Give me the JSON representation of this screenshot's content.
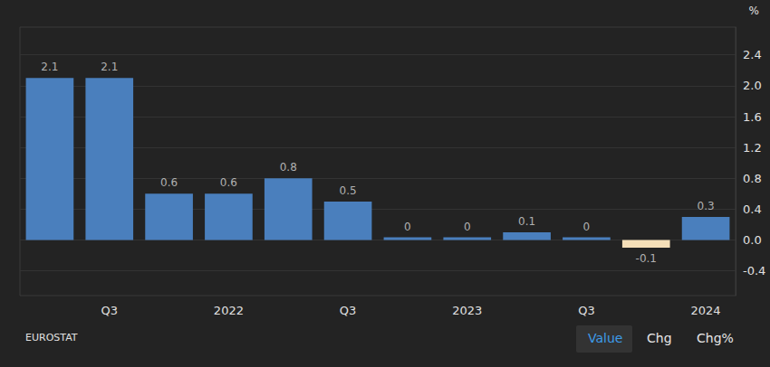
{
  "chart_data": {
    "type": "bar",
    "ylabel": "%",
    "source": "EUROSTAT",
    "buttons": [
      "Value",
      "Chg",
      "Chg%"
    ],
    "categories": [
      null,
      "Q3",
      null,
      "2022",
      null,
      "Q3",
      null,
      "2023",
      null,
      "Q3",
      null,
      "2024"
    ],
    "values": [
      2.1,
      2.1,
      0.6,
      0.6,
      0.8,
      0.5,
      0,
      0,
      0.1,
      0,
      -0.1,
      0.3
    ],
    "colors": [
      "#4a7fbd",
      "#4a7fbd",
      "#4a7fbd",
      "#4a7fbd",
      "#4a7fbd",
      "#4a7fbd",
      "#4a7fbd",
      "#4a7fbd",
      "#4a7fbd",
      "#4a7fbd",
      "#f5dfb8",
      "#4a7fbd"
    ],
    "ylim": [
      -0.72,
      2.76
    ],
    "yticks": [
      -0.4,
      {
        "value": 0,
        "label": "0.0"
      },
      0.4,
      0.8,
      1.2,
      1.6,
      {
        "value": 2,
        "label": "2.0"
      },
      2.4
    ],
    "grid": true,
    "data_labels": true
  }
}
